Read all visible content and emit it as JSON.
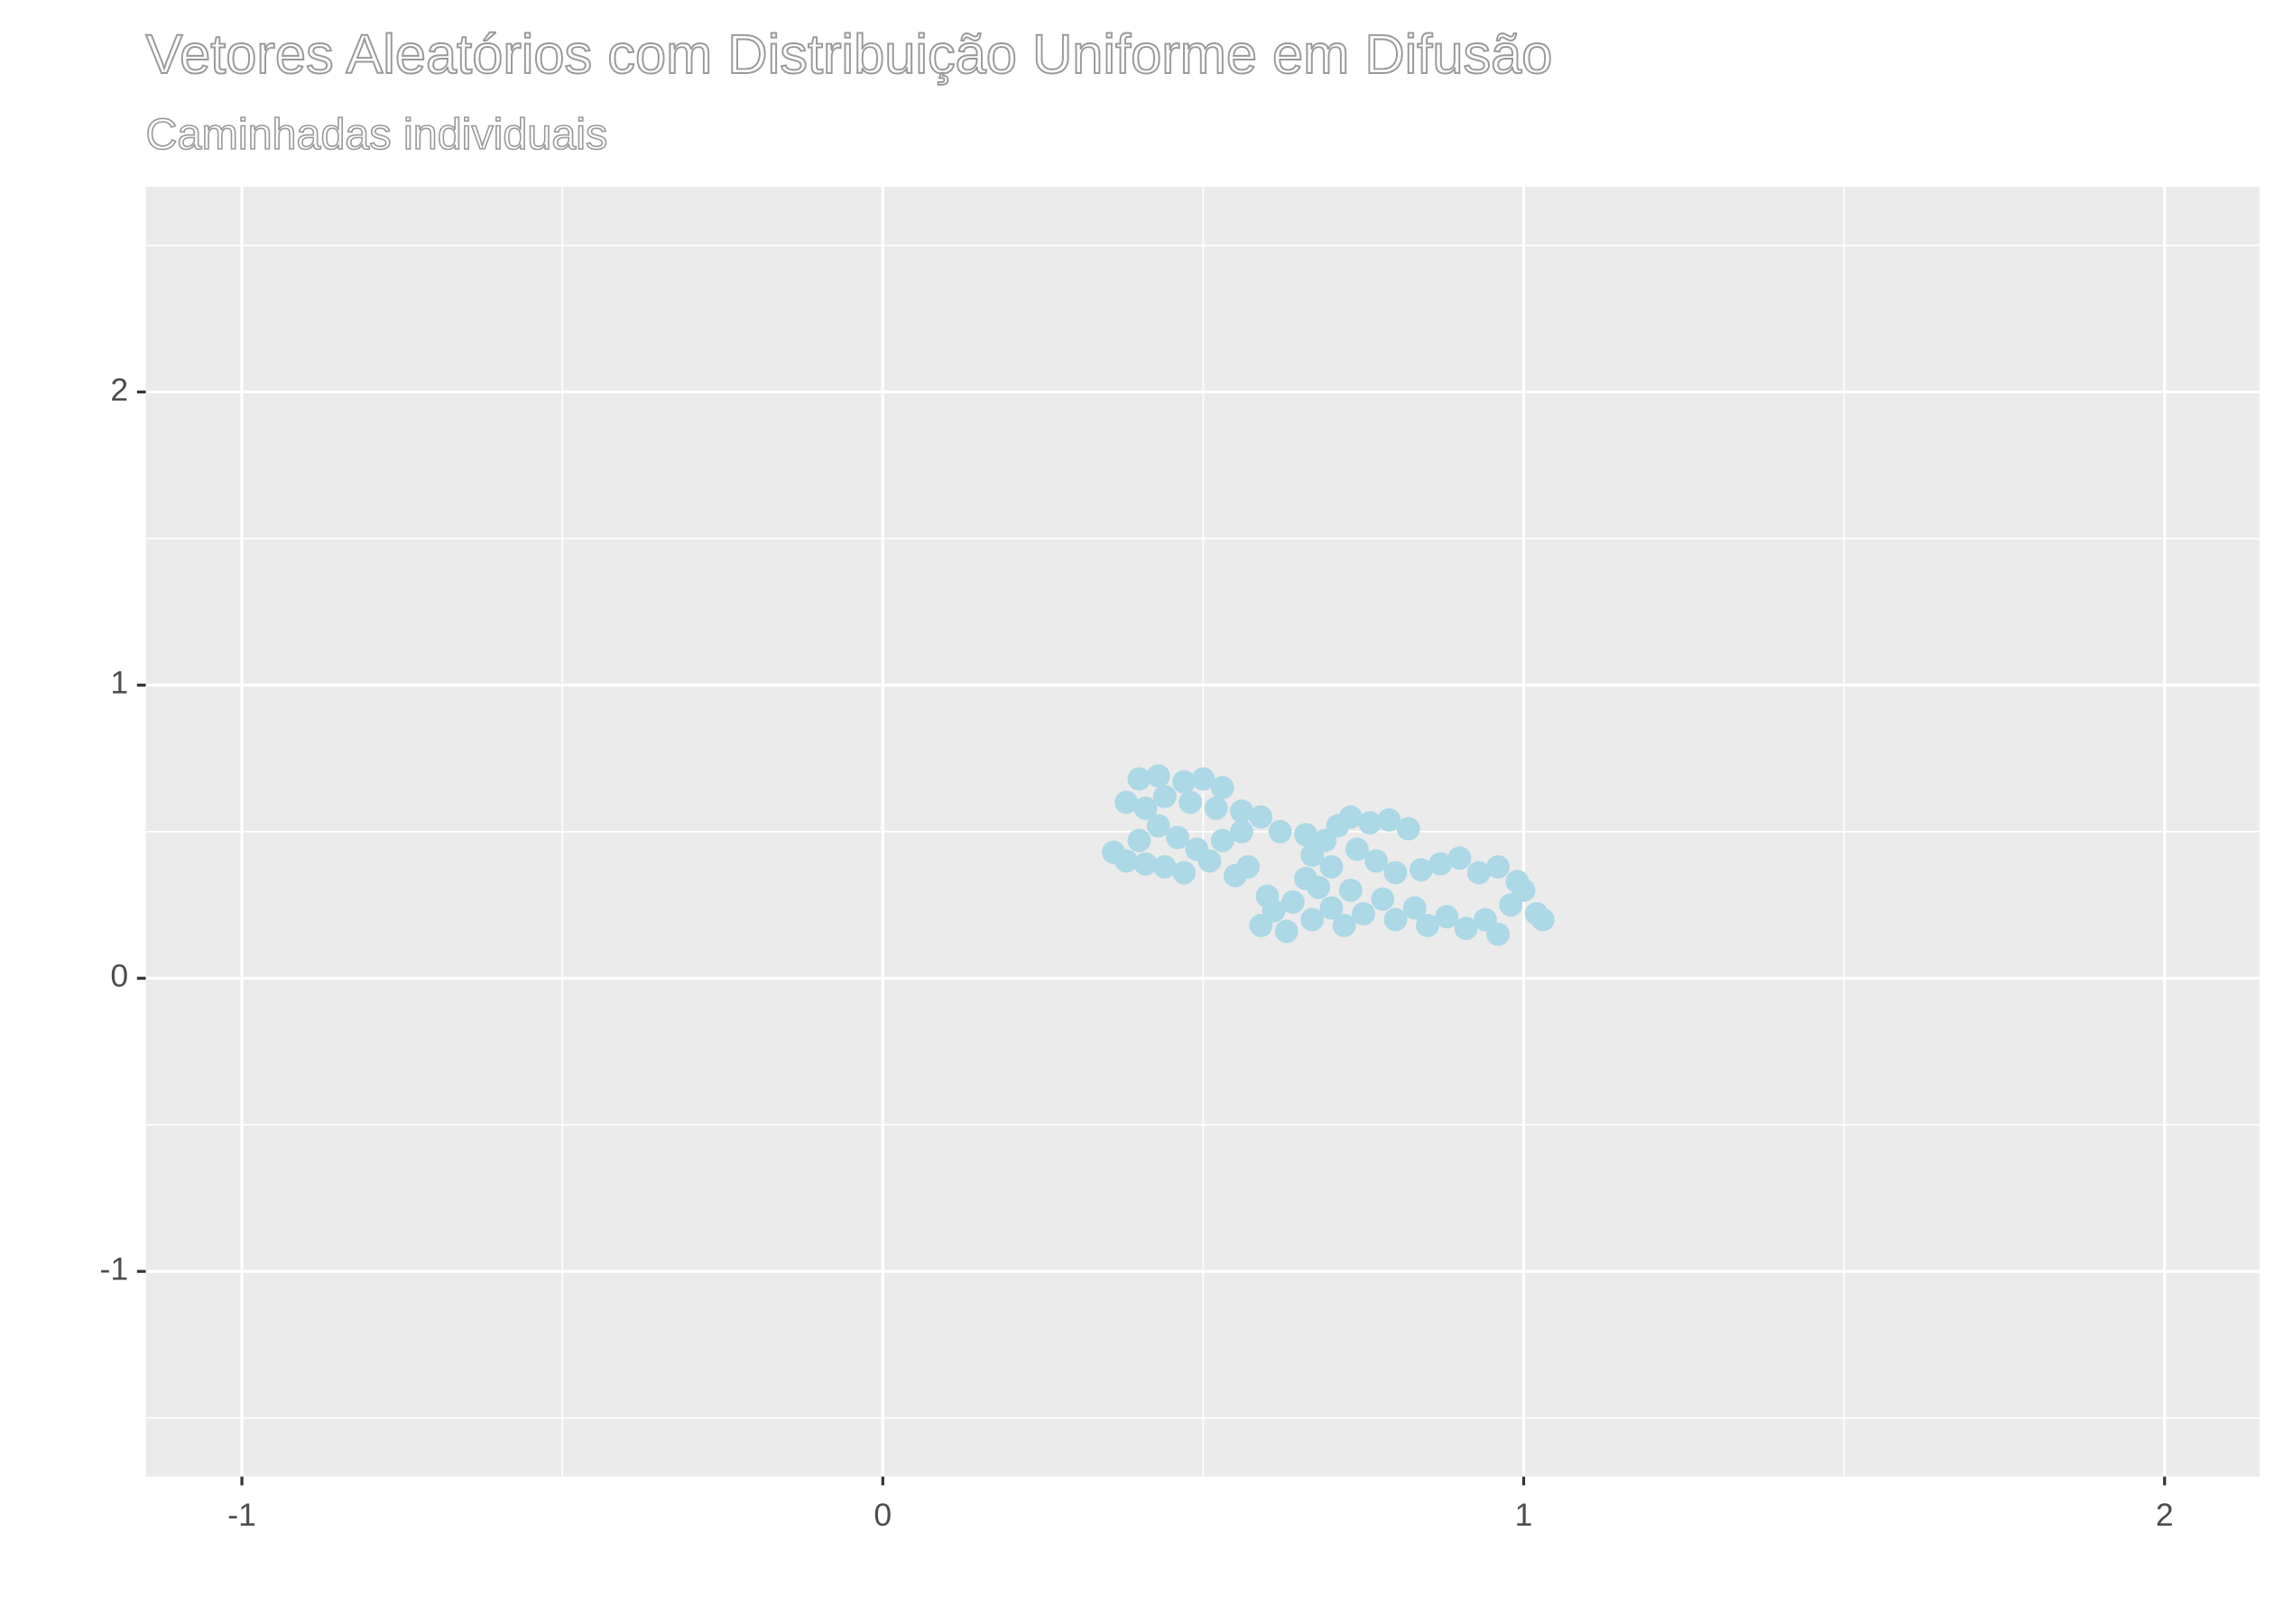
{
  "chart_data": {
    "type": "scatter",
    "title": "Vetores Aleatórios com Distribuição Uniforme em Difusão",
    "subtitle": "Caminhadas individuais",
    "color": "#add8e6",
    "xlim": [
      -1.15,
      2.148
    ],
    "ylim": [
      -1.7,
      2.7
    ],
    "xticks": [
      -1,
      0,
      1,
      2
    ],
    "yticks": [
      -1,
      0,
      1,
      2
    ],
    "xminor": [
      -0.5,
      0.5,
      1.5
    ],
    "yminor": [
      -1.5,
      -0.5,
      0.5,
      1.5,
      2.5
    ],
    "grid": true,
    "x": [
      0.4,
      0.43,
      0.47,
      0.5,
      0.53,
      0.38,
      0.41,
      0.44,
      0.48,
      0.52,
      0.56,
      0.59,
      0.62,
      0.36,
      0.38,
      0.4,
      0.43,
      0.46,
      0.49,
      0.51,
      0.47,
      0.44,
      0.41,
      0.55,
      0.57,
      0.53,
      0.56,
      0.66,
      0.69,
      0.71,
      0.73,
      0.76,
      0.79,
      0.82,
      0.67,
      0.7,
      0.74,
      0.77,
      0.8,
      0.59,
      0.61,
      0.63,
      0.6,
      0.64,
      0.67,
      0.7,
      0.73,
      0.72,
      0.75,
      0.78,
      0.8,
      0.83,
      0.85,
      0.88,
      0.91,
      0.94,
      0.96,
      0.98,
      1.0,
      1.02,
      1.03,
      0.99,
      0.96,
      0.93,
      0.9,
      0.87,
      0.84,
      0.68,
      0.66
    ],
    "values": [
      0.68,
      0.69,
      0.67,
      0.68,
      0.65,
      0.6,
      0.58,
      0.62,
      0.6,
      0.58,
      0.57,
      0.55,
      0.5,
      0.43,
      0.4,
      0.47,
      0.52,
      0.48,
      0.44,
      0.4,
      0.36,
      0.38,
      0.39,
      0.35,
      0.38,
      0.47,
      0.5,
      0.49,
      0.47,
      0.52,
      0.55,
      0.53,
      0.54,
      0.51,
      0.42,
      0.38,
      0.44,
      0.4,
      0.36,
      0.18,
      0.23,
      0.16,
      0.28,
      0.26,
      0.2,
      0.24,
      0.3,
      0.18,
      0.22,
      0.27,
      0.2,
      0.24,
      0.18,
      0.21,
      0.17,
      0.2,
      0.15,
      0.25,
      0.3,
      0.22,
      0.2,
      0.33,
      0.38,
      0.36,
      0.41,
      0.39,
      0.37,
      0.31,
      0.34
    ]
  }
}
